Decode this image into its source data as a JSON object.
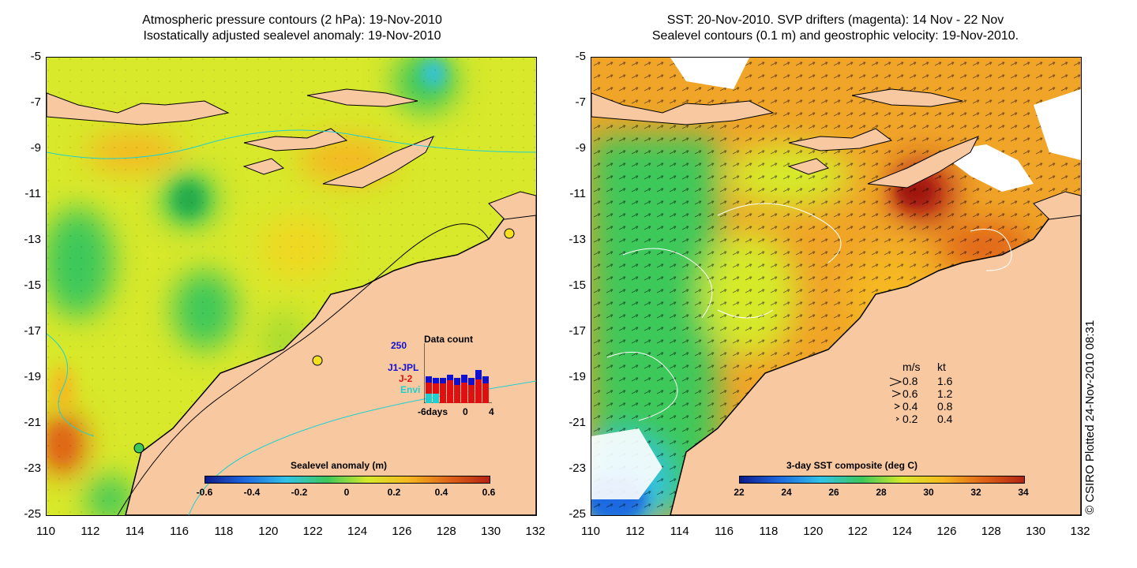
{
  "left_panel": {
    "title_line1": "Atmospheric pressure contours (2 hPa): 19-Nov-2010",
    "title_line2": "Isostatically adjusted sealevel anomaly: 19-Nov-2010",
    "colorbar_title": "Sealevel anomaly (m)",
    "colorbar_ticks": [
      "-0.6",
      "-0.4",
      "-0.2",
      "0",
      "0.2",
      "0.4",
      "0.6"
    ],
    "colorbar_colors": [
      "#0d1a8c",
      "#1e6be0",
      "#33c2e8",
      "#3cc85a",
      "#d6ea2a",
      "#f5b820",
      "#e06418",
      "#b32414"
    ],
    "data_count": {
      "title": "Data count",
      "max_label": "250",
      "series": [
        {
          "name": "J1-JPL",
          "color": "#1010d0"
        },
        {
          "name": "J-2",
          "color": "#e01010"
        },
        {
          "name": "Envi",
          "color": "#20d0d0"
        }
      ],
      "x_ticks": [
        "-6days",
        "0",
        "4"
      ]
    }
  },
  "right_panel": {
    "title_line1": "SST: 20-Nov-2010. SVP drifters (magenta): 14 Nov - 22 Nov",
    "title_line2": "Sealevel contours (0.1 m) and geostrophic velocity: 19-Nov-2010.",
    "colorbar_title": "3-day SST composite (deg C)",
    "colorbar_ticks": [
      "22",
      "24",
      "26",
      "28",
      "30",
      "32",
      "34"
    ],
    "colorbar_colors": [
      "#0d1a8c",
      "#1e6be0",
      "#33c2e8",
      "#3cc85a",
      "#d6ea2a",
      "#f5b820",
      "#e06418",
      "#b32414"
    ],
    "speed_legend": {
      "header_ms": "m/s",
      "header_kt": "kt",
      "rows": [
        {
          "ms": "0.8",
          "kt": "1.6"
        },
        {
          "ms": "0.6",
          "kt": "1.2"
        },
        {
          "ms": "0.4",
          "kt": "0.8"
        },
        {
          "ms": "0.2",
          "kt": "0.4"
        }
      ]
    },
    "credit": "© CSIRO Plotted 24-Nov-2010 08:31"
  },
  "axes": {
    "y_ticks": [
      "-5",
      "-7",
      "-9",
      "-11",
      "-13",
      "-15",
      "-17",
      "-19",
      "-21",
      "-23",
      "-25"
    ],
    "x_ticks": [
      "110",
      "112",
      "114",
      "116",
      "118",
      "120",
      "122",
      "124",
      "126",
      "128",
      "130",
      "132"
    ]
  },
  "colors": {
    "land": "#f8c8a0",
    "ocean_left": "#d8e82a",
    "ocean_right": "#f0a428"
  }
}
